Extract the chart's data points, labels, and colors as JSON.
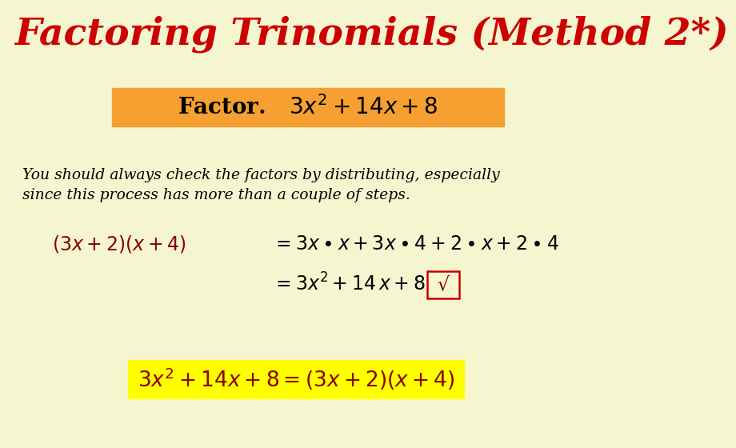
{
  "background_color": "#f5f5d0",
  "title": "Factoring Trinomials (Method 2*)",
  "title_color": "#cc0000",
  "title_fontsize": 34,
  "orange_box_color": "#f5a030",
  "italic_text_line1": "You should always check the factors by distributing, especially",
  "italic_text_line2": "since this process has more than a couple of steps.",
  "italic_color": "#000000",
  "italic_fontsize": 13.5,
  "dark_red": "#8b0000",
  "black": "#000000",
  "yellow_box_color": "#ffff00",
  "expand_fontsize": 17,
  "final_fontsize": 19,
  "sqrt_symbol": "√"
}
